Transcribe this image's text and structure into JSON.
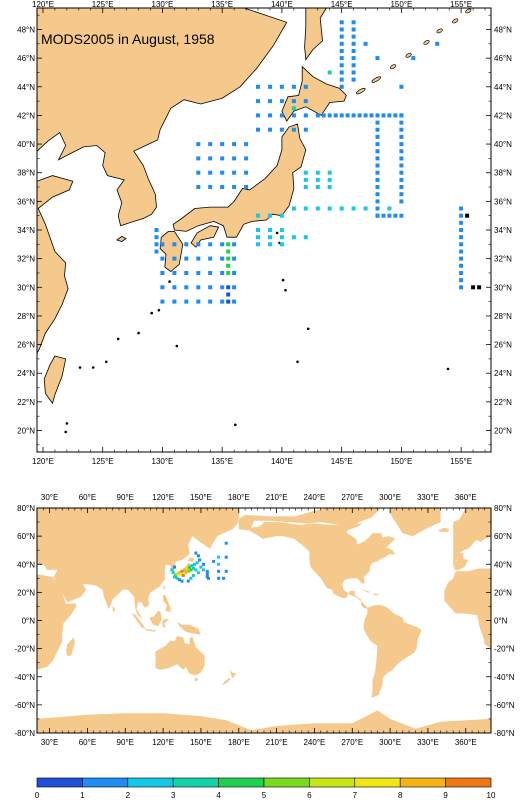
{
  "title": "MODS2005 in August, 1958",
  "regional_map": {
    "lon_labels": [
      "120°E",
      "125°E",
      "130°E",
      "135°E",
      "140°E",
      "145°E",
      "150°E",
      "155°E"
    ],
    "lat_labels": [
      "48°N",
      "46°N",
      "44°N",
      "42°N",
      "40°N",
      "38°N",
      "36°N",
      "34°N",
      "32°N",
      "30°N",
      "28°N",
      "26°N",
      "24°N",
      "22°N",
      "20°N"
    ],
    "lon_range": [
      119.5,
      157.5
    ],
    "lat_range": [
      18.5,
      49.5
    ],
    "grid": false
  },
  "global_map": {
    "lon_labels": [
      "30°E",
      "60°E",
      "90°E",
      "120°E",
      "150°E",
      "180°E",
      "210°E",
      "240°E",
      "270°E",
      "300°E",
      "330°E",
      "360°E"
    ],
    "lat_labels": [
      "80°N",
      "60°N",
      "40°N",
      "20°N",
      "0°N",
      "-20°N",
      "-40°N",
      "-60°N",
      "-80°N"
    ],
    "lon_range": [
      20,
      380
    ],
    "lat_range": [
      -80,
      80
    ],
    "grid": false
  },
  "colorbar": {
    "labels": [
      "0",
      "1",
      "2",
      "3",
      "4",
      "5",
      "6",
      "7",
      "8",
      "9",
      "10"
    ],
    "colors": [
      "#1e50d8",
      "#1e8cf0",
      "#14c8e6",
      "#14d2aa",
      "#1ed250",
      "#78dc1e",
      "#c8e614",
      "#f0e614",
      "#f5b414",
      "#f07814",
      "#e63c14"
    ]
  },
  "colors": {
    "land": "#f5c88c",
    "ocean": "#ffffff"
  }
}
